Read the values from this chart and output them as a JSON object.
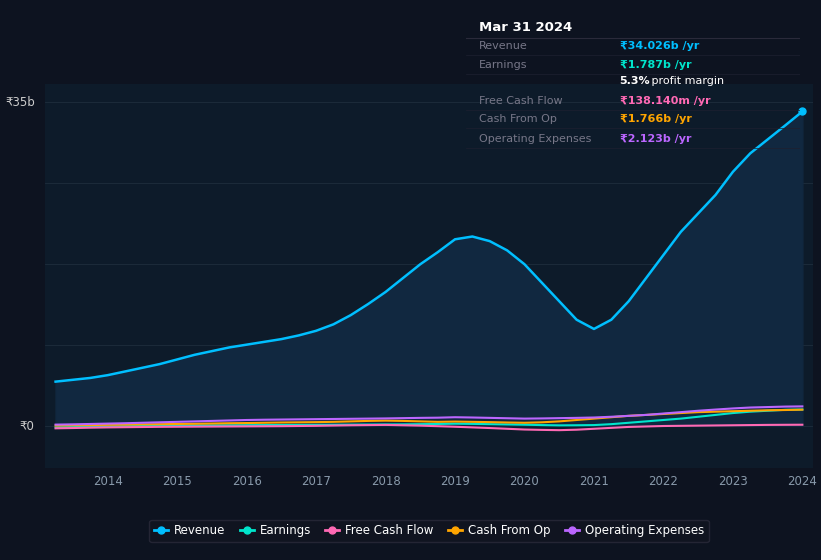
{
  "bg_color": "#0d1320",
  "plot_bg_color": "#0d1b2a",
  "grid_color": "#1e2d3d",
  "title": "Mar 31 2024",
  "info_box_rows": [
    {
      "label": "Revenue",
      "value": "₹34.026b /yr",
      "value_color": "#00bfff"
    },
    {
      "label": "Earnings",
      "value": "₹1.787b /yr",
      "value_color": "#00e5cc"
    },
    {
      "label": "",
      "value": "5.3% profit margin",
      "value_color": "#cccccc",
      "bold_prefix": "5.3%"
    },
    {
      "label": "Free Cash Flow",
      "value": "₹138.140m /yr",
      "value_color": "#ff69b4"
    },
    {
      "label": "Cash From Op",
      "value": "₹1.766b /yr",
      "value_color": "#ffa500"
    },
    {
      "label": "Operating Expenses",
      "value": "₹2.123b /yr",
      "value_color": "#bb66ff"
    }
  ],
  "ylabel_top": "₹35b",
  "ylabel_zero": "₹0",
  "years": [
    2013.25,
    2013.5,
    2013.75,
    2014,
    2014.25,
    2014.5,
    2014.75,
    2015,
    2015.25,
    2015.5,
    2015.75,
    2016,
    2016.25,
    2016.5,
    2016.75,
    2017,
    2017.25,
    2017.5,
    2017.75,
    2018,
    2018.25,
    2018.5,
    2018.75,
    2019,
    2019.25,
    2019.5,
    2019.75,
    2020,
    2020.25,
    2020.5,
    2020.75,
    2021,
    2021.25,
    2021.5,
    2021.75,
    2022,
    2022.25,
    2022.5,
    2022.75,
    2023,
    2023.25,
    2023.5,
    2023.75,
    2024
  ],
  "revenue": [
    4.8,
    5.0,
    5.2,
    5.5,
    5.9,
    6.3,
    6.7,
    7.2,
    7.7,
    8.1,
    8.5,
    8.8,
    9.1,
    9.4,
    9.8,
    10.3,
    11.0,
    12.0,
    13.2,
    14.5,
    16.0,
    17.5,
    18.8,
    20.2,
    20.5,
    20.0,
    19.0,
    17.5,
    15.5,
    13.5,
    11.5,
    10.5,
    11.5,
    13.5,
    16.0,
    18.5,
    21.0,
    23.0,
    25.0,
    27.5,
    29.5,
    31.0,
    32.5,
    34.026
  ],
  "earnings": [
    -0.15,
    -0.12,
    -0.08,
    -0.05,
    -0.02,
    0.0,
    0.02,
    0.04,
    0.06,
    0.07,
    0.08,
    0.09,
    0.1,
    0.11,
    0.12,
    0.13,
    0.14,
    0.15,
    0.16,
    0.17,
    0.18,
    0.2,
    0.22,
    0.25,
    0.23,
    0.2,
    0.17,
    0.14,
    0.1,
    0.07,
    0.08,
    0.1,
    0.2,
    0.35,
    0.5,
    0.65,
    0.8,
    1.0,
    1.2,
    1.4,
    1.55,
    1.65,
    1.75,
    1.787
  ],
  "free_cash_flow": [
    -0.25,
    -0.22,
    -0.18,
    -0.15,
    -0.13,
    -0.11,
    -0.09,
    -0.08,
    -0.07,
    -0.06,
    -0.05,
    -0.04,
    -0.03,
    -0.02,
    0.0,
    0.02,
    0.05,
    0.08,
    0.1,
    0.12,
    0.08,
    0.04,
    -0.02,
    -0.08,
    -0.15,
    -0.22,
    -0.3,
    -0.38,
    -0.42,
    -0.45,
    -0.4,
    -0.3,
    -0.2,
    -0.1,
    -0.05,
    0.0,
    0.02,
    0.04,
    0.06,
    0.08,
    0.1,
    0.12,
    0.13,
    0.138
  ],
  "cash_from_op": [
    0.05,
    0.08,
    0.1,
    0.13,
    0.15,
    0.18,
    0.2,
    0.22,
    0.24,
    0.27,
    0.3,
    0.32,
    0.35,
    0.38,
    0.4,
    0.42,
    0.45,
    0.5,
    0.55,
    0.58,
    0.55,
    0.5,
    0.45,
    0.48,
    0.45,
    0.42,
    0.38,
    0.35,
    0.4,
    0.5,
    0.65,
    0.8,
    0.95,
    1.1,
    1.2,
    1.3,
    1.4,
    1.5,
    1.55,
    1.6,
    1.65,
    1.7,
    1.73,
    1.766
  ],
  "operating_expenses": [
    0.15,
    0.18,
    0.22,
    0.26,
    0.3,
    0.35,
    0.4,
    0.45,
    0.5,
    0.55,
    0.6,
    0.65,
    0.68,
    0.7,
    0.72,
    0.74,
    0.76,
    0.78,
    0.8,
    0.82,
    0.85,
    0.88,
    0.9,
    0.95,
    0.92,
    0.88,
    0.84,
    0.8,
    0.82,
    0.85,
    0.88,
    0.92,
    1.0,
    1.1,
    1.2,
    1.35,
    1.5,
    1.65,
    1.78,
    1.9,
    2.0,
    2.05,
    2.1,
    2.123
  ],
  "revenue_color": "#00bfff",
  "revenue_fill": "#112840",
  "earnings_color": "#00e5cc",
  "free_cash_flow_color": "#ff69b4",
  "cash_from_op_color": "#ffa500",
  "operating_expenses_color": "#bb66ff",
  "xticks": [
    2014,
    2015,
    2016,
    2017,
    2018,
    2019,
    2020,
    2021,
    2022,
    2023,
    2024
  ],
  "ylim": [
    -4.5,
    37
  ],
  "xlim_start": 2013.1,
  "xlim_end": 2024.15,
  "legend_items": [
    {
      "label": "Revenue",
      "color": "#00bfff"
    },
    {
      "label": "Earnings",
      "color": "#00e5cc"
    },
    {
      "label": "Free Cash Flow",
      "color": "#ff69b4"
    },
    {
      "label": "Cash From Op",
      "color": "#ffa500"
    },
    {
      "label": "Operating Expenses",
      "color": "#bb66ff"
    }
  ]
}
